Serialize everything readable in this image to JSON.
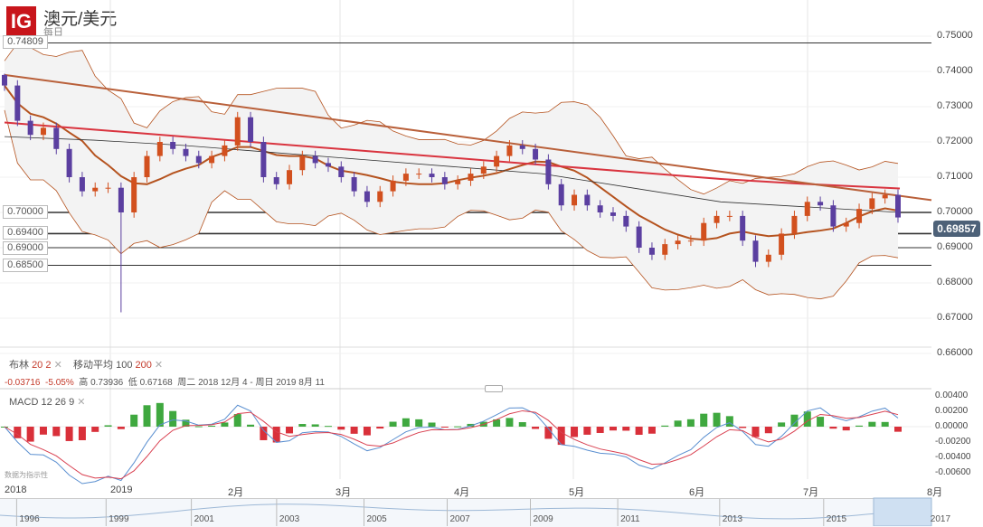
{
  "header": {
    "logo": "IG",
    "title": "澳元/美元",
    "period": "每日"
  },
  "levels": [
    "0.74809",
    "0.70000",
    "0.69400",
    "0.69000",
    "0.68500"
  ],
  "price_axis": [
    "0.75000",
    "0.74000",
    "0.73000",
    "0.72000",
    "0.71000",
    "0.70000",
    "0.69000",
    "0.68000",
    "0.67000",
    "0.66000"
  ],
  "current_price": "0.69857",
  "legend": {
    "bb": "布林",
    "bb_p1": "20",
    "bb_p2": "2",
    "ma": "移动平均",
    "ma_p1": "100",
    "ma_p2": "200",
    "close": "✕"
  },
  "stats": {
    "change": "-0.03716",
    "pct": "-5.05%",
    "high_label": "高",
    "high": "0.73936",
    "low_label": "低",
    "low": "0.67168",
    "range": "周二 2018 12月 4 - 周日 2019 8月 11"
  },
  "macd": {
    "label": "MACD",
    "p1": "12",
    "p2": "26",
    "p3": "9",
    "close": "✕",
    "axis": [
      "0.00400",
      "0.00200",
      "0.00000",
      "-0.00200",
      "-0.00400",
      "-0.00600"
    ],
    "note": "数据为指示性"
  },
  "time_axis": [
    "2018",
    "2019",
    "2月",
    "3月",
    "4月",
    "5月",
    "6月",
    "7月",
    "8月"
  ],
  "navigator_years": [
    "1996",
    "1999",
    "2001",
    "2003",
    "2005",
    "2007",
    "2009",
    "2011",
    "2013",
    "2015",
    "2017"
  ],
  "colors": {
    "up": "#d2501e",
    "down": "#5b3fa0",
    "ma200": "#d9343f",
    "ma100": "#333333",
    "bb": "#b5531f",
    "trend": "#b9603a",
    "macd_pos": "#3fa83f",
    "macd_neg": "#d9303a"
  },
  "chart_data": {
    "type": "candlestick",
    "symbol": "澳元/美元",
    "ylim": [
      0.66,
      0.75
    ],
    "closes": [
      0.736,
      0.726,
      0.722,
      0.724,
      0.718,
      0.71,
      0.706,
      0.707,
      0.707,
      0.7,
      0.71,
      0.716,
      0.72,
      0.718,
      0.716,
      0.714,
      0.716,
      0.719,
      0.727,
      0.72,
      0.71,
      0.708,
      0.712,
      0.716,
      0.714,
      0.713,
      0.71,
      0.706,
      0.703,
      0.706,
      0.709,
      0.711,
      0.711,
      0.71,
      0.708,
      0.709,
      0.711,
      0.713,
      0.716,
      0.719,
      0.718,
      0.715,
      0.708,
      0.702,
      0.705,
      0.702,
      0.7,
      0.699,
      0.696,
      0.69,
      0.688,
      0.691,
      0.692,
      0.692,
      0.697,
      0.699,
      0.699,
      0.692,
      0.686,
      0.688,
      0.694,
      0.699,
      0.703,
      0.702,
      0.696,
      0.697,
      0.701,
      0.704,
      0.705,
      0.69857
    ],
    "extremes": [
      {
        "index": 0,
        "high": 0.73936
      },
      {
        "index": 9,
        "low": 0.67168
      }
    ],
    "ma200": [
      0.7255,
      0.7235,
      0.7215,
      0.7195,
      0.7175,
      0.7155,
      0.7135,
      0.7115,
      0.7095,
      0.708,
      0.7068
    ],
    "ma100": [
      0.7215,
      0.7205,
      0.719,
      0.717,
      0.715,
      0.713,
      0.711,
      0.707,
      0.703,
      0.7015,
      0.7
    ],
    "trendline": [
      0.739,
      0.7035
    ]
  }
}
